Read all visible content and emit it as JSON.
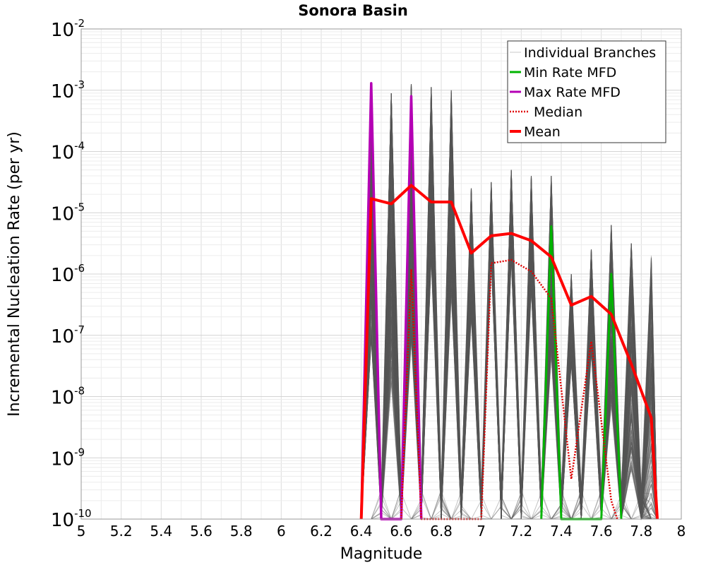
{
  "chart_data": {
    "type": "line",
    "title": "Sonora Basin",
    "xlabel": "Magnitude",
    "ylabel": "Incremental Nucleation Rate (per yr)",
    "xlim": [
      5,
      8
    ],
    "ylim": [
      1e-10,
      0.01
    ],
    "yscale": "log",
    "grid": true,
    "legend_position": "top-right",
    "x_ticks": [
      "5",
      "5.2",
      "5.4",
      "5.6",
      "5.8",
      "6",
      "6.2",
      "6.4",
      "6.6",
      "6.8",
      "7",
      "7.2",
      "7.4",
      "7.6",
      "7.8",
      "8"
    ],
    "y_ticks": [
      {
        "base": "10",
        "exp": "-10"
      },
      {
        "base": "10",
        "exp": "-9"
      },
      {
        "base": "10",
        "exp": "-8"
      },
      {
        "base": "10",
        "exp": "-7"
      },
      {
        "base": "10",
        "exp": "-6"
      },
      {
        "base": "10",
        "exp": "-5"
      },
      {
        "base": "10",
        "exp": "-4"
      },
      {
        "base": "10",
        "exp": "-3"
      },
      {
        "base": "10",
        "exp": "-2"
      }
    ],
    "legend": [
      {
        "label": "Individual Branches",
        "color": "#c8c8c8",
        "style": "thin"
      },
      {
        "label": "Min Rate MFD",
        "color": "#00b400",
        "style": "solid"
      },
      {
        "label": "Max Rate MFD",
        "color": "#b400b4",
        "style": "solid"
      },
      {
        "label": "Median",
        "color": "#e00000",
        "style": "dotted"
      },
      {
        "label": "Mean",
        "color": "#ff0000",
        "style": "thick"
      }
    ],
    "branch_color": "#555555",
    "branch_count": 220,
    "series": [
      {
        "name": "Min Rate MFD",
        "color": "#00b400",
        "x": [
          7.3,
          7.35,
          7.4,
          7.6,
          7.65,
          7.7
        ],
        "y": [
          1e-10,
          6e-06,
          1e-10,
          1e-10,
          1e-06,
          1e-10
        ]
      },
      {
        "name": "Max Rate MFD",
        "color": "#b400b4",
        "x": [
          6.4,
          6.45,
          6.5,
          6.6,
          6.65,
          6.7
        ],
        "y": [
          1e-10,
          0.0013,
          1e-10,
          1e-10,
          0.0008,
          1e-10
        ]
      },
      {
        "name": "Median",
        "color": "#e00000",
        "x": [
          6.6,
          6.65,
          6.7,
          7.0,
          7.05,
          7.15,
          7.25,
          7.35,
          7.45,
          7.55,
          7.65,
          7.68
        ],
        "y": [
          1e-10,
          1.2e-06,
          1e-10,
          1e-10,
          1.5e-06,
          1.7e-06,
          1.1e-06,
          4e-07,
          4.5e-10,
          8e-08,
          2e-10,
          1e-10
        ]
      },
      {
        "name": "Mean",
        "color": "#ff0000",
        "x": [
          6.4,
          6.45,
          6.55,
          6.65,
          6.75,
          6.85,
          6.95,
          7.05,
          7.15,
          7.25,
          7.35,
          7.45,
          7.55,
          7.65,
          7.75,
          7.85,
          7.88
        ],
        "y": [
          1e-10,
          1.7e-05,
          1.4e-05,
          2.8e-05,
          1.5e-05,
          1.5e-05,
          2.2e-06,
          4.2e-06,
          4.6e-06,
          3.5e-06,
          1.9e-06,
          3.1e-07,
          4.3e-07,
          2.2e-07,
          3.4e-08,
          4.5e-09,
          1e-10
        ]
      }
    ]
  }
}
